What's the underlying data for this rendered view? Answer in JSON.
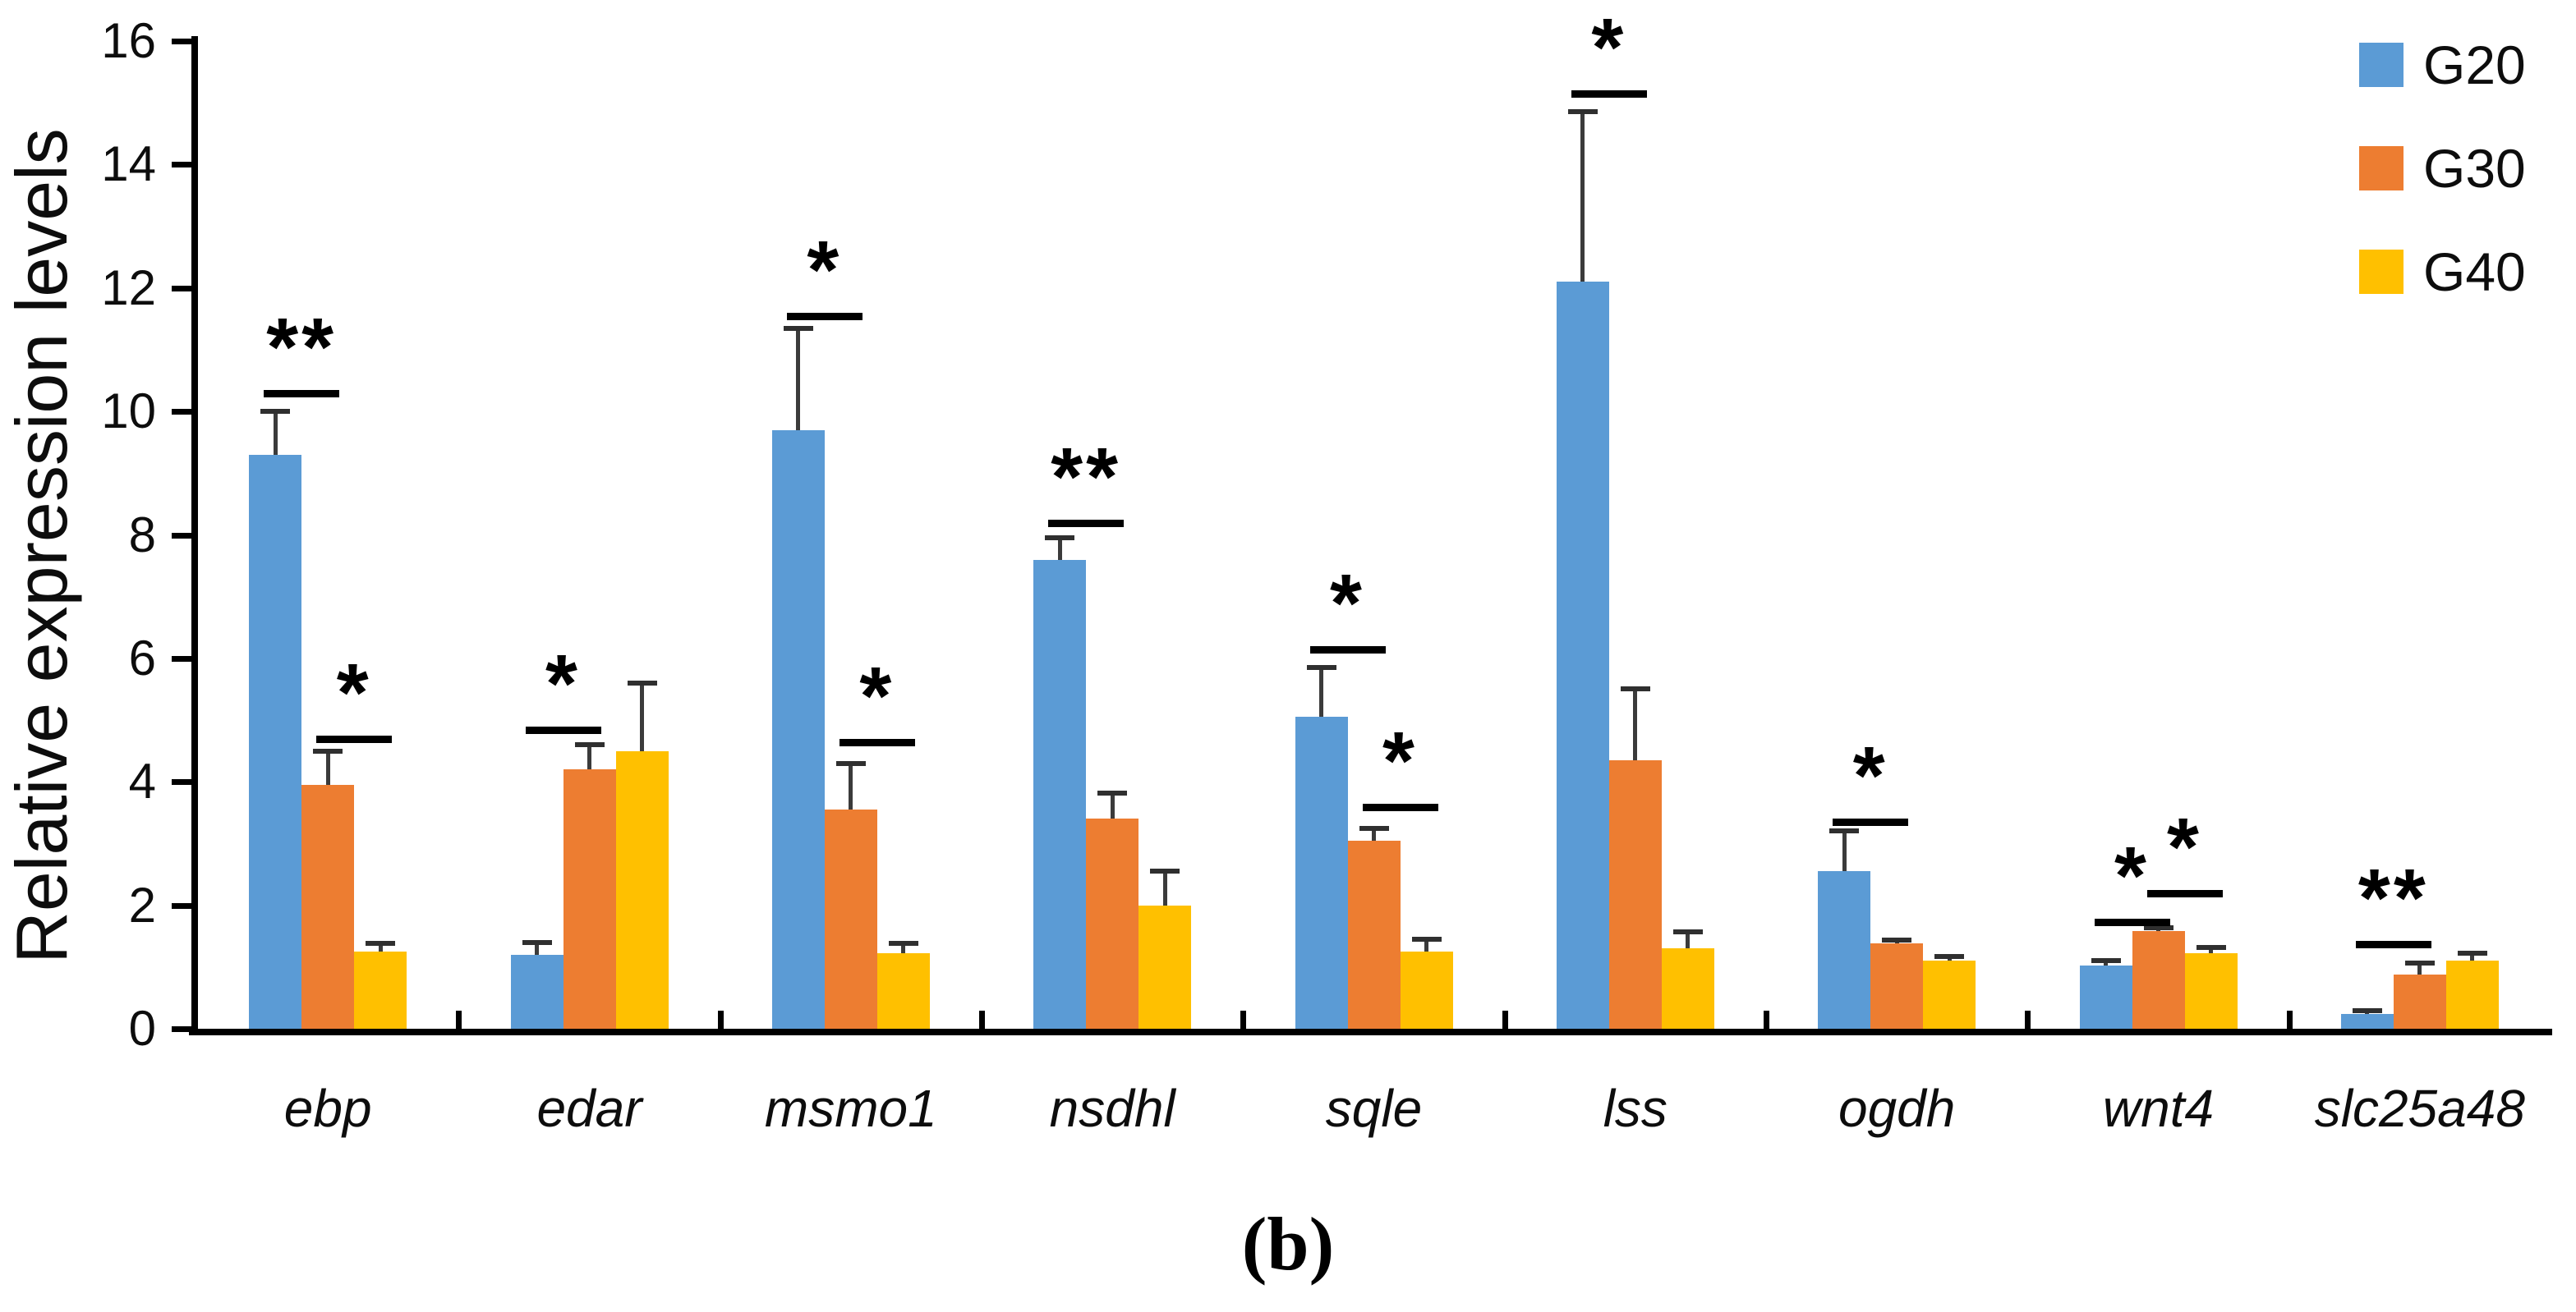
{
  "figure": {
    "caption": "(b)"
  },
  "chart_data": {
    "type": "bar",
    "title": "",
    "xlabel": "",
    "ylabel": "Relative expression levels",
    "ylim": [
      0,
      16
    ],
    "ytick_step": 2,
    "ytick_labels": [
      "0",
      "2",
      "4",
      "6",
      "8",
      "10",
      "12",
      "14",
      "16"
    ],
    "grid": false,
    "legend_position": "top-right",
    "error_bars": "upper whisker with cap, per data point",
    "axis_color": "#000000",
    "error_bar_color": "#3b3b3b",
    "categories": [
      "ebp",
      "edar",
      "msmo1",
      "nsdhl",
      "sqle",
      "lss",
      "ogdh",
      "wnt4",
      "slc25a48"
    ],
    "series": [
      {
        "name": "G20",
        "color": "#5B9BD5",
        "values": [
          9.3,
          1.2,
          9.7,
          7.6,
          5.05,
          12.1,
          2.55,
          1.03,
          0.24
        ],
        "errors": [
          0.7,
          0.2,
          1.65,
          0.35,
          0.8,
          2.75,
          0.65,
          0.07,
          0.05
        ]
      },
      {
        "name": "G30",
        "color": "#ED7D31",
        "values": [
          3.95,
          4.2,
          3.55,
          3.4,
          3.05,
          4.35,
          1.38,
          1.58,
          0.88
        ],
        "errors": [
          0.55,
          0.4,
          0.75,
          0.42,
          0.2,
          1.15,
          0.06,
          0.06,
          0.19
        ]
      },
      {
        "name": "G40",
        "color": "#FFC000",
        "values": [
          1.25,
          4.5,
          1.22,
          2.0,
          1.25,
          1.3,
          1.1,
          1.22,
          1.11
        ],
        "errors": [
          0.13,
          1.1,
          0.16,
          0.55,
          0.2,
          0.27,
          0.07,
          0.1,
          0.11
        ]
      }
    ],
    "significance": [
      {
        "category": "ebp",
        "between": [
          "G20",
          "G30"
        ],
        "label": "**",
        "y": 10.35
      },
      {
        "category": "ebp",
        "between": [
          "G30",
          "G40"
        ],
        "label": "*",
        "y": 4.75
      },
      {
        "category": "edar",
        "between": [
          "G20",
          "G30"
        ],
        "label": "*",
        "y": 4.9
      },
      {
        "category": "msmo1",
        "between": [
          "G20",
          "G30"
        ],
        "label": "*",
        "y": 11.6
      },
      {
        "category": "msmo1",
        "between": [
          "G30",
          "G40"
        ],
        "label": "*",
        "y": 4.7
      },
      {
        "category": "nsdhl",
        "between": [
          "G20",
          "G30"
        ],
        "label": "**",
        "y": 8.25
      },
      {
        "category": "sqle",
        "between": [
          "G20",
          "G30"
        ],
        "label": "*",
        "y": 6.2
      },
      {
        "category": "sqle",
        "between": [
          "G30",
          "G40"
        ],
        "label": "*",
        "y": 3.65
      },
      {
        "category": "lss",
        "between": [
          "G20",
          "G30"
        ],
        "label": "*",
        "y": 15.2
      },
      {
        "category": "ogdh",
        "between": [
          "G20",
          "G30"
        ],
        "label": "*",
        "y": 3.4
      },
      {
        "category": "wnt4",
        "between": [
          "G20",
          "G30"
        ],
        "label": "*",
        "y": 1.78
      },
      {
        "category": "wnt4",
        "between": [
          "G30",
          "G40"
        ],
        "label": "*",
        "y": 2.25
      },
      {
        "category": "slc25a48",
        "between": [
          "G20",
          "G30"
        ],
        "label": "**",
        "y": 1.42
      }
    ]
  }
}
